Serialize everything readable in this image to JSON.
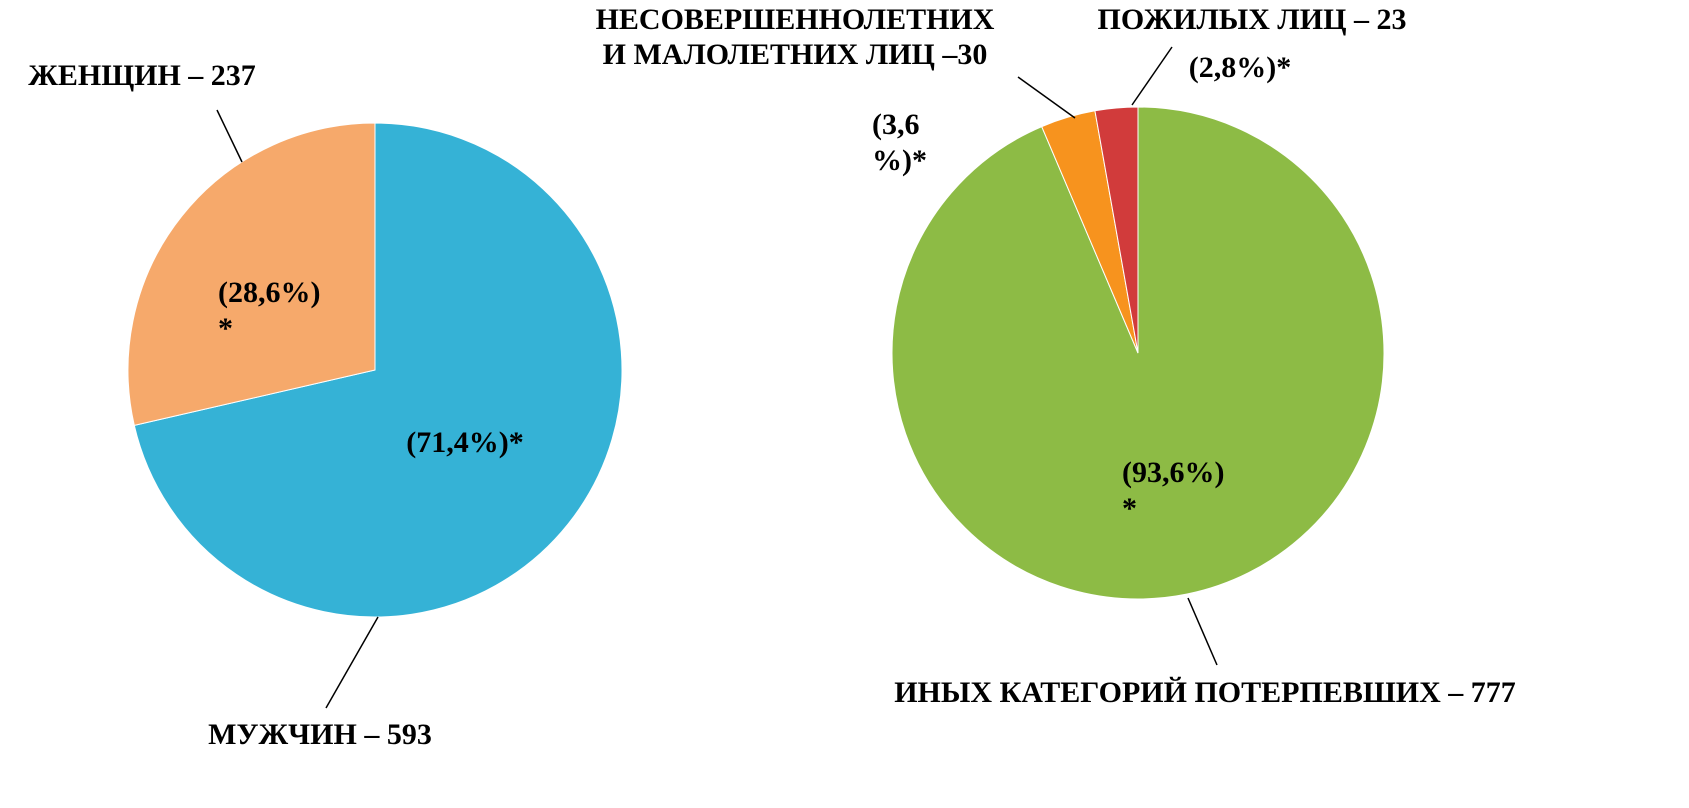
{
  "chart_data": [
    {
      "type": "pie",
      "categories": [
        "МУЖЧИН – 593",
        "ЖЕНЩИН – 237"
      ],
      "values": [
        71.4,
        28.6
      ],
      "value_labels": [
        "(71,4%)*",
        "(28,6%)\n*"
      ],
      "colors": [
        "#35b2d6",
        "#f6a96b"
      ]
    },
    {
      "type": "pie",
      "categories": [
        "ИНЫХ КАТЕГОРИЙ ПОТЕРПЕВШИХ – 777",
        "НЕСОВЕРШЕННОЛЕТНИХ\nИ МАЛОЛЕТНИХ ЛИЦ –30",
        "ПОЖИЛЫХ ЛИЦ – 23"
      ],
      "values": [
        93.6,
        3.6,
        2.8
      ],
      "value_labels": [
        "(93,6%)\n*",
        "(3,6\n%)*",
        "(2,8%)*"
      ],
      "colors": [
        "#8dbb45",
        "#f7931e",
        "#d13b3b"
      ]
    }
  ]
}
